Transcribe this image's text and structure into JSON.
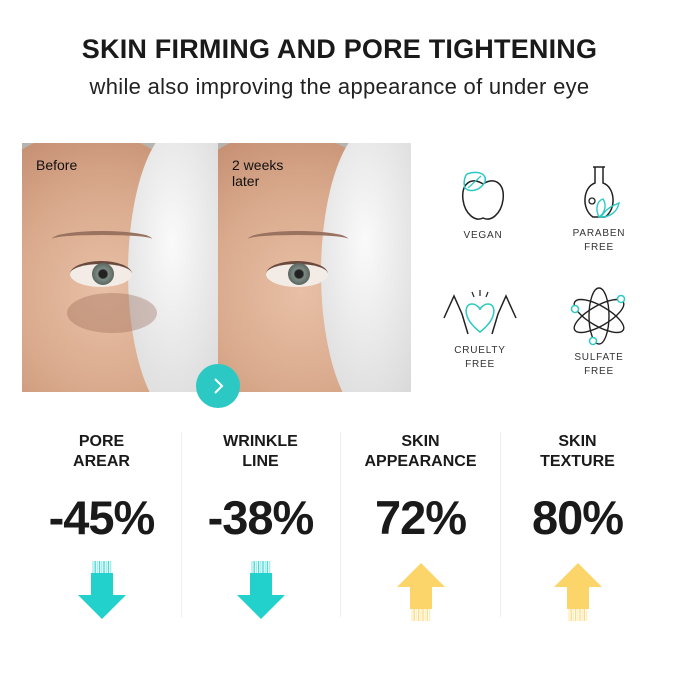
{
  "header": {
    "title": "SKIN FIRMING AND PORE TIGHTENING",
    "subtitle": "while also improving the appearance of under eye"
  },
  "photos": [
    {
      "caption": "Before"
    },
    {
      "caption": "2 weeks later"
    }
  ],
  "next_button_icon": "chevron-right-icon",
  "badges": [
    {
      "label": "VEGAN",
      "icon": "apple-leaf-icon"
    },
    {
      "label": "PARABEN FREE",
      "icon": "flask-leaf-icon"
    },
    {
      "label": "CRUELTY FREE",
      "icon": "hands-heart-icon"
    },
    {
      "label": "SULFATE FREE",
      "icon": "atom-icon"
    }
  ],
  "stats": [
    {
      "label_1": "PORE",
      "label_2": "AREAR",
      "value": "-45%",
      "direction": "down",
      "color": "#22d0cc"
    },
    {
      "label_1": "WRINKLE",
      "label_2": "LINE",
      "value": "-38%",
      "direction": "down",
      "color": "#22d0cc"
    },
    {
      "label_1": "SKIN",
      "label_2": "APPEARANCE",
      "value": "72%",
      "direction": "up",
      "color": "#fcd56a"
    },
    {
      "label_1": "SKIN",
      "label_2": "TEXTURE",
      "value": "80%",
      "direction": "up",
      "color": "#fcd56a"
    }
  ],
  "colors": {
    "accent": "#2cc9c4",
    "up": "#fcd56a",
    "down": "#22d0cc"
  }
}
